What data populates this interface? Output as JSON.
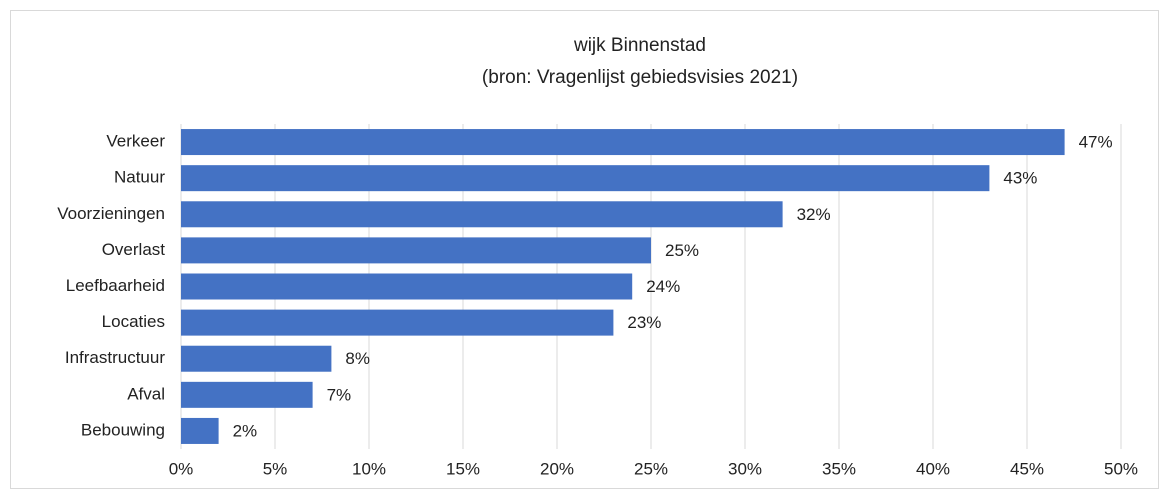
{
  "chart_data": {
    "type": "bar",
    "orientation": "horizontal",
    "title": "wijk Binnenstad",
    "subtitle": "(bron: Vragenlijst gebiedsvisies 2021)",
    "categories": [
      "Verkeer",
      "Natuur",
      "Voorzieningen",
      "Overlast",
      "Leefbaarheid",
      "Locaties",
      "Infrastructuur",
      "Afval",
      "Bebouwing"
    ],
    "values": [
      47,
      43,
      32,
      25,
      24,
      23,
      8,
      7,
      2
    ],
    "value_labels": [
      "47%",
      "43%",
      "32%",
      "25%",
      "24%",
      "23%",
      "8%",
      "7%",
      "2%"
    ],
    "color": "#4472c4",
    "xlim": [
      0,
      50
    ],
    "xticks": [
      {
        "value": 0,
        "label": "0%"
      },
      {
        "value": 5,
        "label": "5%"
      },
      {
        "value": 10,
        "label": "10%"
      },
      {
        "value": 15,
        "label": "15%"
      },
      {
        "value": 20,
        "label": "20%"
      },
      {
        "value": 25,
        "label": "25%"
      },
      {
        "value": 30,
        "label": "30%"
      },
      {
        "value": 35,
        "label": "35%"
      },
      {
        "value": 40,
        "label": "40%"
      },
      {
        "value": 45,
        "label": "45%"
      },
      {
        "value": 50,
        "label": "50%"
      }
    ],
    "grid": true
  }
}
